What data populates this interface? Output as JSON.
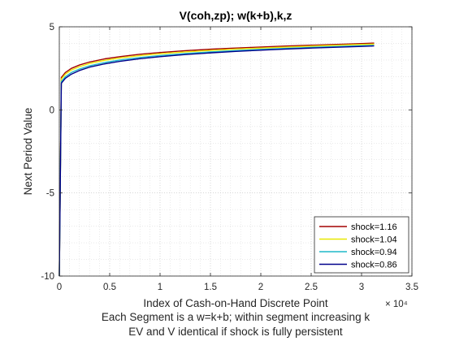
{
  "chart_data": {
    "type": "line",
    "title": "V(coh,zp); w(k+b),k,z",
    "xlabel": "Index of Cash-on-Hand Discrete Point",
    "xlabel_lines": [
      "Each Segment is a w=k+b; within segment increasing k",
      "EV and V identical if shock is fully persistent"
    ],
    "ylabel": "Next Period Value",
    "xlim": [
      0,
      35000
    ],
    "ylim": [
      -10,
      5
    ],
    "x_ticks": [
      0,
      5000,
      10000,
      15000,
      20000,
      25000,
      30000,
      35000
    ],
    "x_tick_labels": [
      "0",
      "0.5",
      "1",
      "1.5",
      "2",
      "2.5",
      "3",
      "3.5"
    ],
    "x_exponent_label": "× 10⁴",
    "y_ticks": [
      -10,
      -5,
      0,
      5
    ],
    "y_tick_labels": [
      "-10",
      "-5",
      "0",
      "5"
    ],
    "grid": "on (major and minor, dotted)",
    "legend_position": "bottom-right",
    "series": [
      {
        "name": "shock=1.16",
        "color": "#a30000",
        "x": [
          0,
          200,
          600,
          1200,
          2000,
          3000,
          4500,
          6000,
          8000,
          10000,
          12500,
          15000,
          17500,
          20000,
          22500,
          25000,
          27500,
          30000,
          31250
        ],
        "y": [
          -10,
          1.95,
          2.25,
          2.5,
          2.7,
          2.88,
          3.07,
          3.2,
          3.35,
          3.45,
          3.56,
          3.65,
          3.72,
          3.78,
          3.84,
          3.89,
          3.94,
          3.99,
          4.02
        ]
      },
      {
        "name": "shock=1.04",
        "color": "#e8e800",
        "x": [
          0,
          200,
          600,
          1200,
          2000,
          3000,
          4500,
          6000,
          8000,
          10000,
          12500,
          15000,
          17500,
          20000,
          22500,
          25000,
          27500,
          30000,
          31250
        ],
        "y": [
          -10,
          1.85,
          2.15,
          2.4,
          2.6,
          2.79,
          2.98,
          3.12,
          3.27,
          3.38,
          3.49,
          3.58,
          3.66,
          3.72,
          3.78,
          3.84,
          3.89,
          3.94,
          3.96
        ]
      },
      {
        "name": "shock=0.94",
        "color": "#1fb8c8",
        "x": [
          0,
          200,
          600,
          1200,
          2000,
          3000,
          4500,
          6000,
          8000,
          10000,
          12500,
          15000,
          17500,
          20000,
          22500,
          25000,
          27500,
          30000,
          31250
        ],
        "y": [
          -10,
          1.7,
          2.0,
          2.25,
          2.46,
          2.65,
          2.85,
          3.0,
          3.15,
          3.27,
          3.39,
          3.49,
          3.57,
          3.64,
          3.7,
          3.76,
          3.81,
          3.86,
          3.88
        ]
      },
      {
        "name": "shock=0.86",
        "color": "#00008b",
        "x": [
          0,
          200,
          600,
          1200,
          2000,
          3000,
          4500,
          6000,
          8000,
          10000,
          12500,
          15000,
          17500,
          20000,
          22500,
          25000,
          27500,
          30000,
          31250
        ],
        "y": [
          -10,
          1.6,
          1.9,
          2.15,
          2.37,
          2.57,
          2.77,
          2.92,
          3.08,
          3.2,
          3.33,
          3.43,
          3.52,
          3.59,
          3.66,
          3.72,
          3.77,
          3.82,
          3.85
        ]
      }
    ]
  }
}
